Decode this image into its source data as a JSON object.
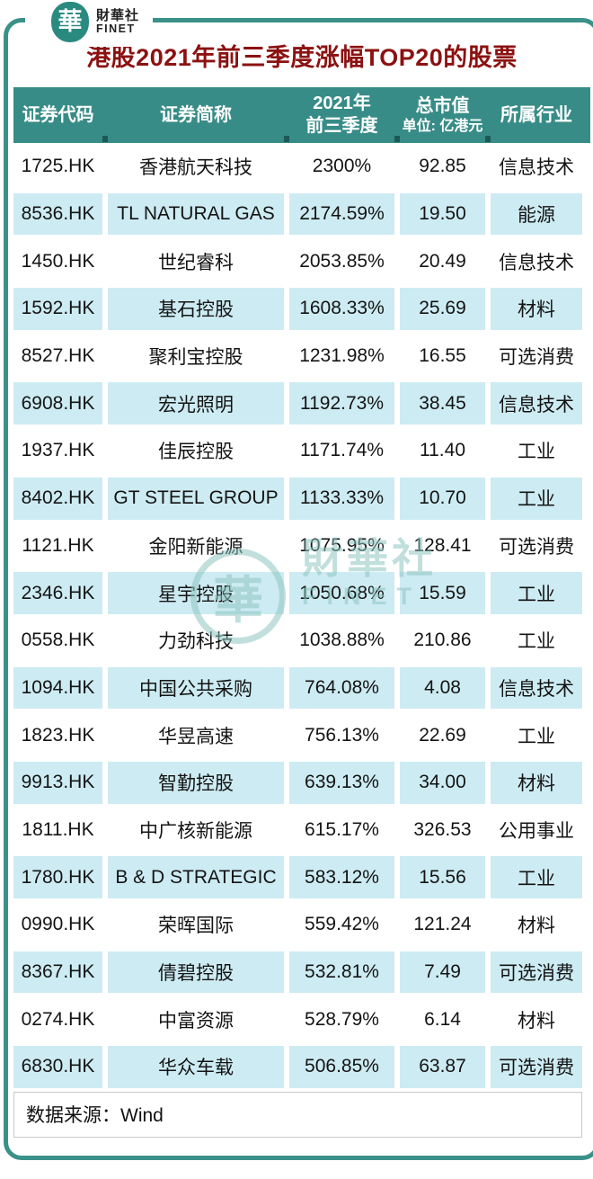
{
  "logo": {
    "glyph": "華",
    "name_cn": "財華社",
    "name_en": "FINET"
  },
  "title": "港股2021年前三季度涨幅TOP20的股票",
  "table": {
    "headers": {
      "code": "证券代码",
      "name": "证券简称",
      "gain_line1": "2021年",
      "gain_line2": "前三季度",
      "cap_line1": "总市值",
      "cap_line2": "单位: 亿港元",
      "industry": "所属行业"
    }
  },
  "chart_data": {
    "type": "table",
    "title": "港股2021年前三季度涨幅TOP20的股票",
    "columns": [
      "证券代码",
      "证券简称",
      "2021年前三季度",
      "总市值 单位:亿港元",
      "所属行业"
    ],
    "rows": [
      [
        "1725.HK",
        "香港航天科技",
        "2300%",
        "92.85",
        "信息技术"
      ],
      [
        "8536.HK",
        "TL NATURAL GAS",
        "2174.59%",
        "19.50",
        "能源"
      ],
      [
        "1450.HK",
        "世纪睿科",
        "2053.85%",
        "20.49",
        "信息技术"
      ],
      [
        "1592.HK",
        "基石控股",
        "1608.33%",
        "25.69",
        "材料"
      ],
      [
        "8527.HK",
        "聚利宝控股",
        "1231.98%",
        "16.55",
        "可选消费"
      ],
      [
        "6908.HK",
        "宏光照明",
        "1192.73%",
        "38.45",
        "信息技术"
      ],
      [
        "1937.HK",
        "佳辰控股",
        "1171.74%",
        "11.40",
        "工业"
      ],
      [
        "8402.HK",
        "GT STEEL GROUP",
        "1133.33%",
        "10.70",
        "工业"
      ],
      [
        "1121.HK",
        "金阳新能源",
        "1075.95%",
        "128.41",
        "可选消费"
      ],
      [
        "2346.HK",
        "星宇控股",
        "1050.68%",
        "15.59",
        "工业"
      ],
      [
        "0558.HK",
        "力劲科技",
        "1038.88%",
        "210.86",
        "工业"
      ],
      [
        "1094.HK",
        "中国公共采购",
        "764.08%",
        "4.08",
        "信息技术"
      ],
      [
        "1823.HK",
        "华昱高速",
        "756.13%",
        "22.69",
        "工业"
      ],
      [
        "9913.HK",
        "智勤控股",
        "639.13%",
        "34.00",
        "材料"
      ],
      [
        "1811.HK",
        "中广核新能源",
        "615.17%",
        "326.53",
        "公用事业"
      ],
      [
        "1780.HK",
        "B & D STRATEGIC",
        "583.12%",
        "15.56",
        "工业"
      ],
      [
        "0990.HK",
        "荣晖国际",
        "559.42%",
        "121.24",
        "材料"
      ],
      [
        "8367.HK",
        "倩碧控股",
        "532.81%",
        "7.49",
        "可选消费"
      ],
      [
        "0274.HK",
        "中富资源",
        "528.79%",
        "6.14",
        "材料"
      ],
      [
        "6830.HK",
        "华众车载",
        "506.85%",
        "63.87",
        "可选消费"
      ]
    ],
    "source": "数据来源：Wind"
  },
  "footer": {
    "source": "数据来源：Wind"
  },
  "watermark": {
    "glyph": "華",
    "text_cn": "財華社",
    "text_en": "FINET"
  },
  "colors": {
    "header_bg": "#388c87",
    "row_alt_bg": "#cdebf2",
    "frame_border": "#3a9189",
    "title_color": "#8c1111",
    "logo_teal": "#2a8a80",
    "watermark": "#8fc6c1"
  }
}
